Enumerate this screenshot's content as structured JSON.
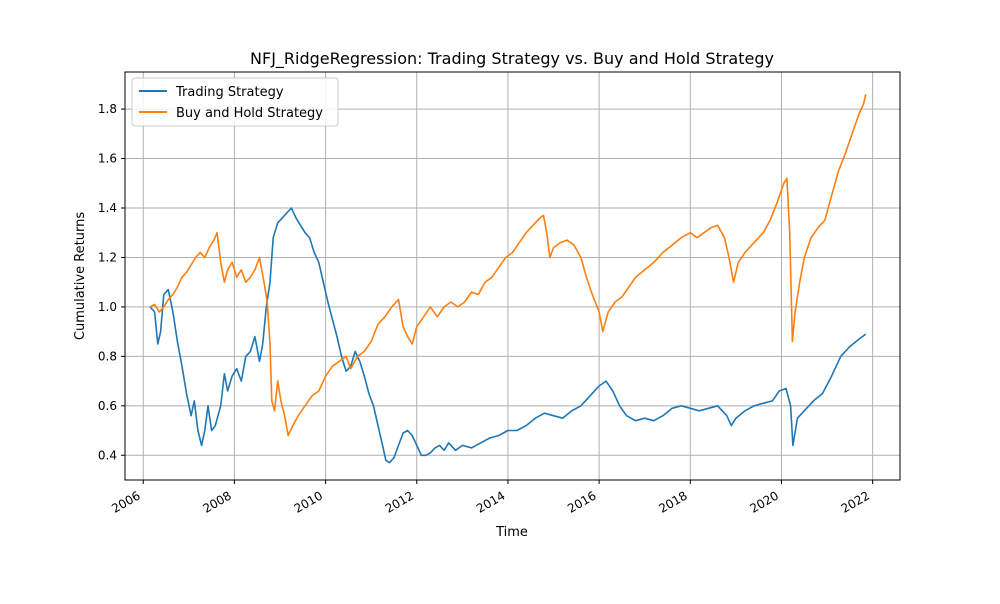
{
  "chart_data": {
    "type": "line",
    "title": "NFJ_RidgeRegression: Trading Strategy vs. Buy and Hold Strategy",
    "xlabel": "Time",
    "ylabel": "Cumulative Returns",
    "xlim": [
      2005.6,
      2022.6
    ],
    "ylim": [
      0.3,
      1.95
    ],
    "x_ticks": [
      2006,
      2008,
      2010,
      2012,
      2014,
      2016,
      2018,
      2020,
      2022
    ],
    "x_tick_labels": [
      "2006",
      "2008",
      "2010",
      "2012",
      "2014",
      "2016",
      "2018",
      "2020",
      "2022"
    ],
    "y_ticks": [
      0.4,
      0.6,
      0.8,
      1.0,
      1.2,
      1.4,
      1.6,
      1.8
    ],
    "y_tick_labels": [
      "0.4",
      "0.6",
      "0.8",
      "1.0",
      "1.2",
      "1.4",
      "1.6",
      "1.8"
    ],
    "grid": true,
    "legend_position": "top-left",
    "series": [
      {
        "name": "Trading Strategy",
        "color": "#1f77b4",
        "points": [
          [
            2006.15,
            1.0
          ],
          [
            2006.25,
            0.98
          ],
          [
            2006.32,
            0.85
          ],
          [
            2006.38,
            0.9
          ],
          [
            2006.45,
            1.05
          ],
          [
            2006.55,
            1.07
          ],
          [
            2006.65,
            0.98
          ],
          [
            2006.75,
            0.86
          ],
          [
            2006.85,
            0.76
          ],
          [
            2006.95,
            0.65
          ],
          [
            2007.05,
            0.56
          ],
          [
            2007.12,
            0.62
          ],
          [
            2007.2,
            0.5
          ],
          [
            2007.28,
            0.44
          ],
          [
            2007.35,
            0.5
          ],
          [
            2007.42,
            0.6
          ],
          [
            2007.5,
            0.5
          ],
          [
            2007.58,
            0.52
          ],
          [
            2007.7,
            0.6
          ],
          [
            2007.78,
            0.73
          ],
          [
            2007.85,
            0.66
          ],
          [
            2007.95,
            0.72
          ],
          [
            2008.05,
            0.75
          ],
          [
            2008.15,
            0.7
          ],
          [
            2008.25,
            0.8
          ],
          [
            2008.35,
            0.82
          ],
          [
            2008.45,
            0.88
          ],
          [
            2008.55,
            0.78
          ],
          [
            2008.62,
            0.85
          ],
          [
            2008.7,
            1.0
          ],
          [
            2008.78,
            1.1
          ],
          [
            2008.85,
            1.28
          ],
          [
            2008.95,
            1.34
          ],
          [
            2009.05,
            1.36
          ],
          [
            2009.15,
            1.38
          ],
          [
            2009.25,
            1.4
          ],
          [
            2009.35,
            1.36
          ],
          [
            2009.45,
            1.33
          ],
          [
            2009.55,
            1.3
          ],
          [
            2009.65,
            1.28
          ],
          [
            2009.75,
            1.22
          ],
          [
            2009.85,
            1.18
          ],
          [
            2009.95,
            1.1
          ],
          [
            2010.05,
            1.02
          ],
          [
            2010.15,
            0.95
          ],
          [
            2010.25,
            0.88
          ],
          [
            2010.35,
            0.8
          ],
          [
            2010.45,
            0.74
          ],
          [
            2010.55,
            0.76
          ],
          [
            2010.65,
            0.82
          ],
          [
            2010.75,
            0.78
          ],
          [
            2010.85,
            0.72
          ],
          [
            2010.95,
            0.65
          ],
          [
            2011.05,
            0.6
          ],
          [
            2011.15,
            0.52
          ],
          [
            2011.25,
            0.44
          ],
          [
            2011.32,
            0.38
          ],
          [
            2011.4,
            0.37
          ],
          [
            2011.5,
            0.39
          ],
          [
            2011.6,
            0.44
          ],
          [
            2011.7,
            0.49
          ],
          [
            2011.8,
            0.5
          ],
          [
            2011.9,
            0.48
          ],
          [
            2012.0,
            0.44
          ],
          [
            2012.1,
            0.4
          ],
          [
            2012.2,
            0.4
          ],
          [
            2012.3,
            0.41
          ],
          [
            2012.4,
            0.43
          ],
          [
            2012.5,
            0.44
          ],
          [
            2012.6,
            0.42
          ],
          [
            2012.7,
            0.45
          ],
          [
            2012.85,
            0.42
          ],
          [
            2013.0,
            0.44
          ],
          [
            2013.2,
            0.43
          ],
          [
            2013.4,
            0.45
          ],
          [
            2013.6,
            0.47
          ],
          [
            2013.8,
            0.48
          ],
          [
            2014.0,
            0.5
          ],
          [
            2014.2,
            0.5
          ],
          [
            2014.4,
            0.52
          ],
          [
            2014.6,
            0.55
          ],
          [
            2014.8,
            0.57
          ],
          [
            2015.0,
            0.56
          ],
          [
            2015.2,
            0.55
          ],
          [
            2015.4,
            0.58
          ],
          [
            2015.6,
            0.6
          ],
          [
            2015.8,
            0.64
          ],
          [
            2016.0,
            0.68
          ],
          [
            2016.15,
            0.7
          ],
          [
            2016.3,
            0.66
          ],
          [
            2016.45,
            0.6
          ],
          [
            2016.6,
            0.56
          ],
          [
            2016.8,
            0.54
          ],
          [
            2017.0,
            0.55
          ],
          [
            2017.2,
            0.54
          ],
          [
            2017.4,
            0.56
          ],
          [
            2017.6,
            0.59
          ],
          [
            2017.8,
            0.6
          ],
          [
            2018.0,
            0.59
          ],
          [
            2018.2,
            0.58
          ],
          [
            2018.4,
            0.59
          ],
          [
            2018.6,
            0.6
          ],
          [
            2018.8,
            0.56
          ],
          [
            2018.9,
            0.52
          ],
          [
            2019.0,
            0.55
          ],
          [
            2019.2,
            0.58
          ],
          [
            2019.4,
            0.6
          ],
          [
            2019.6,
            0.61
          ],
          [
            2019.8,
            0.62
          ],
          [
            2019.95,
            0.66
          ],
          [
            2020.1,
            0.67
          ],
          [
            2020.2,
            0.6
          ],
          [
            2020.25,
            0.44
          ],
          [
            2020.35,
            0.55
          ],
          [
            2020.5,
            0.58
          ],
          [
            2020.7,
            0.62
          ],
          [
            2020.9,
            0.65
          ],
          [
            2021.1,
            0.72
          ],
          [
            2021.3,
            0.8
          ],
          [
            2021.5,
            0.84
          ],
          [
            2021.7,
            0.87
          ],
          [
            2021.85,
            0.89
          ]
        ]
      },
      {
        "name": "Buy and Hold Strategy",
        "color": "#ff7f0e",
        "points": [
          [
            2006.15,
            1.0
          ],
          [
            2006.25,
            1.01
          ],
          [
            2006.35,
            0.98
          ],
          [
            2006.45,
            1.0
          ],
          [
            2006.55,
            1.03
          ],
          [
            2006.65,
            1.05
          ],
          [
            2006.75,
            1.08
          ],
          [
            2006.85,
            1.12
          ],
          [
            2006.95,
            1.14
          ],
          [
            2007.05,
            1.17
          ],
          [
            2007.15,
            1.2
          ],
          [
            2007.25,
            1.22
          ],
          [
            2007.35,
            1.2
          ],
          [
            2007.45,
            1.24
          ],
          [
            2007.55,
            1.27
          ],
          [
            2007.62,
            1.3
          ],
          [
            2007.7,
            1.18
          ],
          [
            2007.78,
            1.1
          ],
          [
            2007.85,
            1.15
          ],
          [
            2007.95,
            1.18
          ],
          [
            2008.05,
            1.12
          ],
          [
            2008.15,
            1.15
          ],
          [
            2008.25,
            1.1
          ],
          [
            2008.35,
            1.12
          ],
          [
            2008.45,
            1.15
          ],
          [
            2008.55,
            1.2
          ],
          [
            2008.65,
            1.1
          ],
          [
            2008.72,
            1.02
          ],
          [
            2008.78,
            0.85
          ],
          [
            2008.82,
            0.62
          ],
          [
            2008.88,
            0.58
          ],
          [
            2008.95,
            0.7
          ],
          [
            2009.02,
            0.62
          ],
          [
            2009.1,
            0.56
          ],
          [
            2009.18,
            0.48
          ],
          [
            2009.28,
            0.52
          ],
          [
            2009.4,
            0.56
          ],
          [
            2009.55,
            0.6
          ],
          [
            2009.7,
            0.64
          ],
          [
            2009.85,
            0.66
          ],
          [
            2010.0,
            0.72
          ],
          [
            2010.15,
            0.76
          ],
          [
            2010.3,
            0.78
          ],
          [
            2010.45,
            0.8
          ],
          [
            2010.55,
            0.75
          ],
          [
            2010.7,
            0.8
          ],
          [
            2010.85,
            0.82
          ],
          [
            2011.0,
            0.86
          ],
          [
            2011.15,
            0.93
          ],
          [
            2011.3,
            0.96
          ],
          [
            2011.45,
            1.0
          ],
          [
            2011.6,
            1.03
          ],
          [
            2011.7,
            0.92
          ],
          [
            2011.8,
            0.88
          ],
          [
            2011.9,
            0.85
          ],
          [
            2012.0,
            0.92
          ],
          [
            2012.15,
            0.96
          ],
          [
            2012.3,
            1.0
          ],
          [
            2012.45,
            0.96
          ],
          [
            2012.6,
            1.0
          ],
          [
            2012.75,
            1.02
          ],
          [
            2012.9,
            1.0
          ],
          [
            2013.05,
            1.02
          ],
          [
            2013.2,
            1.06
          ],
          [
            2013.35,
            1.05
          ],
          [
            2013.5,
            1.1
          ],
          [
            2013.65,
            1.12
          ],
          [
            2013.8,
            1.16
          ],
          [
            2013.95,
            1.2
          ],
          [
            2014.1,
            1.22
          ],
          [
            2014.25,
            1.26
          ],
          [
            2014.4,
            1.3
          ],
          [
            2014.55,
            1.33
          ],
          [
            2014.7,
            1.36
          ],
          [
            2014.78,
            1.37
          ],
          [
            2014.85,
            1.3
          ],
          [
            2014.92,
            1.2
          ],
          [
            2015.0,
            1.24
          ],
          [
            2015.15,
            1.26
          ],
          [
            2015.3,
            1.27
          ],
          [
            2015.45,
            1.25
          ],
          [
            2015.6,
            1.2
          ],
          [
            2015.72,
            1.12
          ],
          [
            2015.85,
            1.05
          ],
          [
            2016.0,
            0.98
          ],
          [
            2016.08,
            0.9
          ],
          [
            2016.2,
            0.98
          ],
          [
            2016.35,
            1.02
          ],
          [
            2016.5,
            1.04
          ],
          [
            2016.65,
            1.08
          ],
          [
            2016.8,
            1.12
          ],
          [
            2017.0,
            1.15
          ],
          [
            2017.2,
            1.18
          ],
          [
            2017.4,
            1.22
          ],
          [
            2017.6,
            1.25
          ],
          [
            2017.8,
            1.28
          ],
          [
            2018.0,
            1.3
          ],
          [
            2018.15,
            1.28
          ],
          [
            2018.3,
            1.3
          ],
          [
            2018.45,
            1.32
          ],
          [
            2018.6,
            1.33
          ],
          [
            2018.75,
            1.28
          ],
          [
            2018.85,
            1.2
          ],
          [
            2018.95,
            1.1
          ],
          [
            2019.05,
            1.18
          ],
          [
            2019.2,
            1.22
          ],
          [
            2019.4,
            1.26
          ],
          [
            2019.6,
            1.3
          ],
          [
            2019.75,
            1.35
          ],
          [
            2019.9,
            1.42
          ],
          [
            2020.05,
            1.5
          ],
          [
            2020.12,
            1.52
          ],
          [
            2020.18,
            1.3
          ],
          [
            2020.24,
            0.86
          ],
          [
            2020.3,
            0.98
          ],
          [
            2020.4,
            1.1
          ],
          [
            2020.5,
            1.2
          ],
          [
            2020.65,
            1.28
          ],
          [
            2020.8,
            1.32
          ],
          [
            2020.95,
            1.35
          ],
          [
            2021.1,
            1.45
          ],
          [
            2021.25,
            1.55
          ],
          [
            2021.4,
            1.62
          ],
          [
            2021.55,
            1.7
          ],
          [
            2021.7,
            1.78
          ],
          [
            2021.8,
            1.82
          ],
          [
            2021.85,
            1.86
          ]
        ]
      }
    ]
  }
}
